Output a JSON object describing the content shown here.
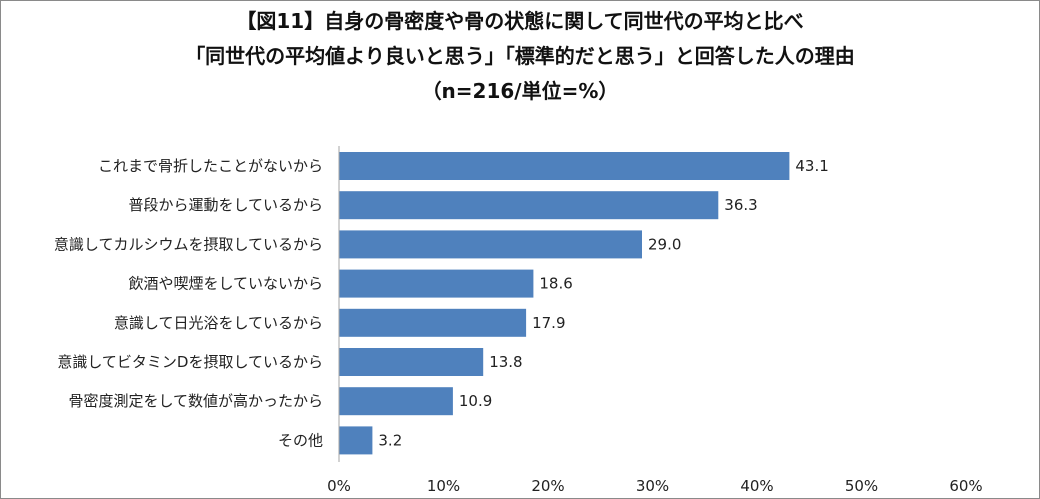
{
  "chart_data": {
    "type": "bar",
    "orientation": "horizontal",
    "title_lines": [
      "【図11】自身の骨密度や骨の状態に関して同世代の平均と比べ",
      "「同世代の平均値より良いと思う」「標準的だと思う」と回答した人の理由",
      "（n=216/単位=%）"
    ],
    "categories": [
      "これまで骨折したことがないから",
      "普段から運動をしているから",
      "意識してカルシウムを摂取しているから",
      "飲酒や喫煙をしていないから",
      "意識して日光浴をしているから",
      "意識してビタミンDを摂取しているから",
      "骨密度測定をして数値が高かったから",
      "その他"
    ],
    "values": [
      43.1,
      36.3,
      29.0,
      18.6,
      17.9,
      13.8,
      10.9,
      3.2
    ],
    "value_labels": [
      "43.1",
      "36.3",
      "29.0",
      "18.6",
      "17.9",
      "13.8",
      "10.9",
      "3.2"
    ],
    "xlim": [
      0,
      60
    ],
    "x_ticks": [
      0,
      10,
      20,
      30,
      40,
      50,
      60
    ],
    "x_tick_labels": [
      "0%",
      "10%",
      "20%",
      "30%",
      "40%",
      "50%",
      "60%"
    ],
    "grid": false,
    "bar_color": "#4f81bd",
    "axis_color": "#a6a6a6"
  }
}
